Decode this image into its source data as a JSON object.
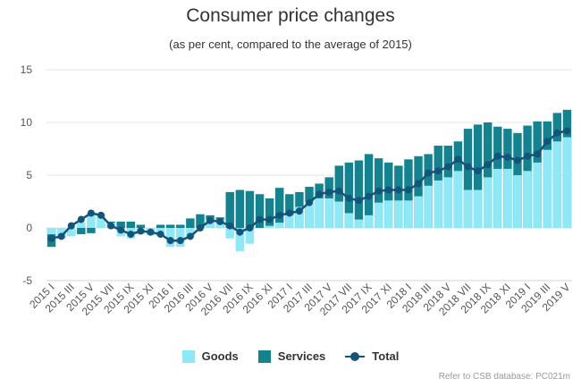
{
  "colors": {
    "goods": "#8ee8f5",
    "services": "#13848f",
    "total": "#14547a",
    "grid": "#e6e6e6",
    "axis": "#ccd6eb"
  },
  "legend": {
    "goods": "Goods",
    "services": "Services",
    "total": "Total"
  },
  "credits": "Refer to CSB database: PC021m",
  "chart_data": {
    "type": "bar",
    "title": "Consumer price changes",
    "subtitle": "(as per cent, compared to the average of 2015)",
    "ylim": [
      -5,
      15
    ],
    "yticks": [
      -5,
      0,
      5,
      10,
      15
    ],
    "xtick_labels": [
      "2015 I",
      "2015 III",
      "2015 V",
      "2015 VII",
      "2015 IX",
      "2015 XI",
      "2016 I",
      "2016 III",
      "2016 V",
      "2016 VII",
      "2016 IX",
      "2016 XI",
      "2017 I",
      "2017 III",
      "2017 V",
      "2017 VII",
      "2017 IX",
      "2017 XI",
      "2018 I",
      "2018 III",
      "2018 V",
      "2018 VII",
      "2018 IX",
      "2018 XI",
      "2019 I",
      "2019 III",
      "2019 V"
    ],
    "categories": [
      "2015 I",
      "2015 II",
      "2015 III",
      "2015 IV",
      "2015 V",
      "2015 VI",
      "2015 VII",
      "2015 VIII",
      "2015 IX",
      "2015 X",
      "2015 XI",
      "2015 XII",
      "2016 I",
      "2016 II",
      "2016 III",
      "2016 IV",
      "2016 V",
      "2016 VI",
      "2016 VII",
      "2016 VIII",
      "2016 IX",
      "2016 X",
      "2016 XI",
      "2016 XII",
      "2017 I",
      "2017 II",
      "2017 III",
      "2017 IV",
      "2017 V",
      "2017 VI",
      "2017 VII",
      "2017 VIII",
      "2017 IX",
      "2017 X",
      "2017 XI",
      "2017 XII",
      "2018 I",
      "2018 II",
      "2018 III",
      "2018 IV",
      "2018 V",
      "2018 VI",
      "2018 VII",
      "2018 VIII",
      "2018 IX",
      "2018 X",
      "2018 XI",
      "2018 XII",
      "2019 I",
      "2019 II",
      "2019 III",
      "2019 IV",
      "2019 V"
    ],
    "series": [
      {
        "name": "Goods",
        "type": "bar",
        "values": [
          -0.6,
          -1.0,
          -0.8,
          0.5,
          1.4,
          1.3,
          0.5,
          -0.8,
          -1.0,
          -0.6,
          -0.7,
          -0.8,
          -1.8,
          -1.8,
          -0.8,
          0.0,
          0.8,
          0.8,
          -1.0,
          -2.2,
          -1.5,
          0.0,
          0.2,
          0.5,
          1.2,
          2.0,
          2.5,
          2.8,
          2.8,
          2.5,
          1.4,
          0.8,
          1.2,
          2.4,
          2.6,
          2.6,
          2.6,
          3.0,
          4.0,
          4.5,
          4.8,
          5.4,
          3.6,
          3.6,
          4.8,
          5.6,
          5.6,
          5.0,
          5.4,
          6.2,
          7.4,
          8.2,
          8.6
        ]
      },
      {
        "name": "Services",
        "type": "bar",
        "values": [
          -1.8,
          -1.0,
          -0.6,
          -0.6,
          -0.5,
          0.3,
          0.6,
          0.6,
          0.6,
          0.3,
          -0.3,
          0.3,
          0.3,
          0.3,
          0.9,
          1.3,
          1.2,
          1.0,
          3.4,
          3.6,
          3.5,
          3.2,
          2.8,
          3.8,
          3.2,
          3.4,
          3.9,
          4.2,
          4.8,
          5.9,
          6.2,
          6.4,
          7.0,
          6.6,
          6.2,
          5.9,
          6.5,
          6.8,
          7.0,
          7.8,
          7.8,
          8.2,
          9.4,
          9.8,
          10.0,
          9.6,
          9.4,
          9.0,
          9.7,
          10.1,
          10.1,
          10.9,
          11.2
        ]
      },
      {
        "name": "Total",
        "type": "line",
        "values": [
          -1.0,
          -0.8,
          0.2,
          0.8,
          1.4,
          1.2,
          0.2,
          -0.2,
          -0.6,
          -0.3,
          -0.4,
          -0.6,
          -1.2,
          -1.2,
          -0.8,
          0.0,
          0.7,
          0.6,
          0.2,
          -0.4,
          0.0,
          0.8,
          0.8,
          1.2,
          1.4,
          1.6,
          2.4,
          3.2,
          3.4,
          3.5,
          2.8,
          2.6,
          3.0,
          3.5,
          3.6,
          3.6,
          3.6,
          4.2,
          5.2,
          5.4,
          5.8,
          6.5,
          5.8,
          5.4,
          6.0,
          6.8,
          6.7,
          6.4,
          6.8,
          7.0,
          8.2,
          9.0,
          9.2
        ]
      }
    ]
  }
}
